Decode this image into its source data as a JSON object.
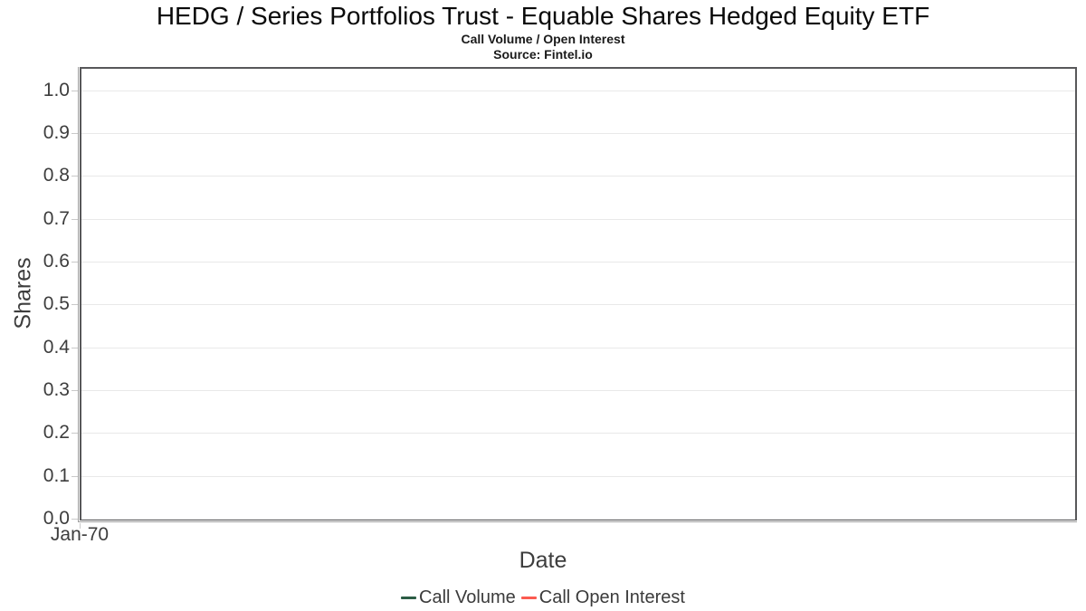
{
  "header": {
    "title": "HEDG / Series Portfolios Trust - Equable Shares Hedged Equity ETF",
    "subtitle": "Call Volume / Open Interest",
    "source": "Source: Fintel.io"
  },
  "axes": {
    "y_label": "Shares",
    "x_label": "Date",
    "y_ticks": [
      {
        "label": "1.0",
        "value": 1.0
      },
      {
        "label": "0.9",
        "value": 0.9
      },
      {
        "label": "0.8",
        "value": 0.8
      },
      {
        "label": "0.7",
        "value": 0.7
      },
      {
        "label": "0.6",
        "value": 0.6
      },
      {
        "label": "0.5",
        "value": 0.5
      },
      {
        "label": "0.4",
        "value": 0.4
      },
      {
        "label": "0.3",
        "value": 0.3
      },
      {
        "label": "0.2",
        "value": 0.2
      },
      {
        "label": "0.1",
        "value": 0.1
      },
      {
        "label": "0.0",
        "value": 0.0
      }
    ],
    "x_ticks": [
      {
        "label": "Jan-70",
        "position": 0
      }
    ]
  },
  "legend": {
    "items": [
      {
        "label": "Call Volume",
        "color": "#2c5d45"
      },
      {
        "label": "Call Open Interest",
        "color": "#fb5a50"
      }
    ]
  },
  "colors": {
    "grid": "#e9e9e9",
    "frame": "#58585a",
    "axis_line": "#9e9e9e",
    "tick_mark": "#c9c9c9",
    "tick_text": "#3d3d3d",
    "title_text": "#0a0a0a"
  },
  "chart_data": {
    "type": "line",
    "title": "HEDG / Series Portfolios Trust - Equable Shares Hedged Equity ETF",
    "subtitle": "Call Volume / Open Interest",
    "source": "Source: Fintel.io",
    "xlabel": "Date",
    "ylabel": "Shares",
    "x_tick_labels": [
      "Jan-70"
    ],
    "y_tick_labels": [
      "0.0",
      "0.1",
      "0.2",
      "0.3",
      "0.4",
      "0.5",
      "0.6",
      "0.7",
      "0.8",
      "0.9",
      "1.0"
    ],
    "ylim": [
      0.0,
      1.05
    ],
    "grid": true,
    "legend_position": "bottom",
    "series": [
      {
        "name": "Call Volume",
        "color": "#2c5d45",
        "x": [],
        "y": []
      },
      {
        "name": "Call Open Interest",
        "color": "#fb5a50",
        "x": [],
        "y": []
      }
    ]
  }
}
